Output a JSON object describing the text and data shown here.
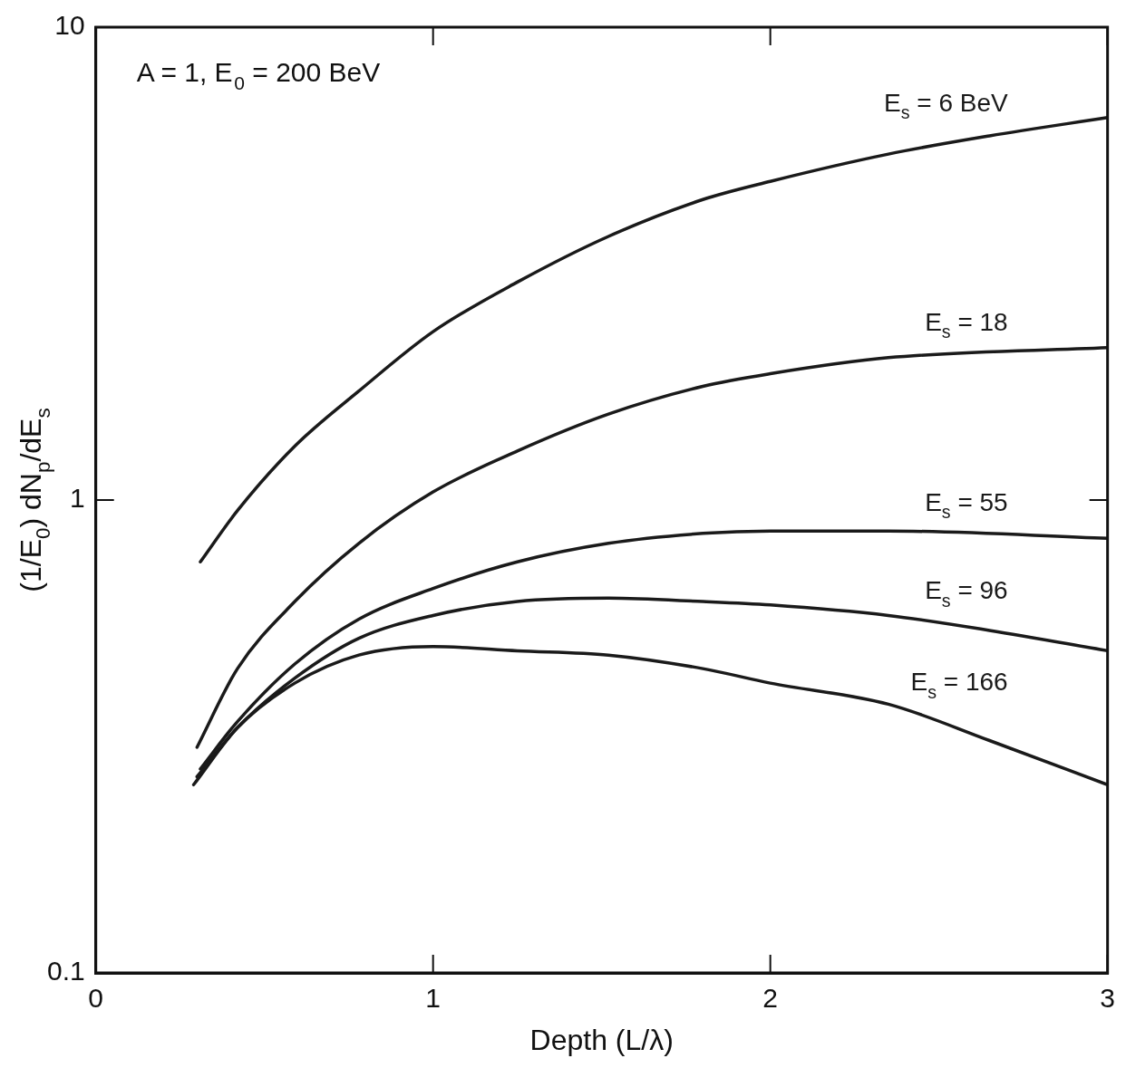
{
  "chart_data": {
    "type": "line",
    "xlabel": "Depth (L/λ)",
    "ylabel": "(1/E$_{0}$) dN$_{p}$/dE$_{s}$",
    "log": "y",
    "grid": false,
    "legend": false,
    "marker": "none",
    "line_style": "solid",
    "xlim": [
      0,
      3
    ],
    "xticks": [
      0,
      1,
      2,
      3
    ],
    "ylim": [
      0.1,
      10
    ],
    "yticks": [
      0.1,
      1,
      10
    ],
    "annotations": [
      "A = 1, E$_{0}$ = 200 BeV"
    ],
    "series": [
      {
        "name": "E$_{s}$ = 6 BeV",
        "color": "#1a1a1a",
        "x": [
          0.31,
          0.42,
          0.59,
          0.78,
          1.0,
          1.25,
          1.52,
          1.8,
          2.0,
          2.35,
          2.65,
          3.0
        ],
        "values": [
          0.74,
          0.95,
          1.3,
          1.7,
          2.27,
          2.89,
          3.61,
          4.32,
          4.72,
          5.39,
          5.89,
          6.44
        ]
      },
      {
        "name": "E$_{s}$ = 18",
        "color": "#1a1a1a",
        "x": [
          0.3,
          0.42,
          0.59,
          0.78,
          1.0,
          1.25,
          1.52,
          1.8,
          2.0,
          2.35,
          3.0
        ],
        "values": [
          0.3,
          0.44,
          0.61,
          0.81,
          1.04,
          1.27,
          1.52,
          1.74,
          1.85,
          2.0,
          2.1
        ]
      },
      {
        "name": "E$_{s}$ = 55",
        "color": "#1a1a1a",
        "x": [
          0.31,
          0.42,
          0.59,
          0.78,
          1.0,
          1.25,
          1.52,
          1.8,
          2.0,
          2.35,
          3.0
        ],
        "values": [
          0.27,
          0.34,
          0.45,
          0.56,
          0.65,
          0.74,
          0.81,
          0.85,
          0.86,
          0.86,
          0.83
        ]
      },
      {
        "name": "E$_{s}$ = 96",
        "color": "#1a1a1a",
        "x": [
          0.3,
          0.42,
          0.59,
          0.78,
          1.0,
          1.25,
          1.52,
          1.8,
          2.0,
          2.35,
          2.65,
          3.0
        ],
        "values": [
          0.26,
          0.33,
          0.42,
          0.51,
          0.57,
          0.61,
          0.62,
          0.61,
          0.6,
          0.57,
          0.53,
          0.48
        ]
      },
      {
        "name": "E$_{s}$ = 166",
        "color": "#1a1a1a",
        "x": [
          0.29,
          0.42,
          0.59,
          0.78,
          1.0,
          1.25,
          1.52,
          1.8,
          2.0,
          2.35,
          2.65,
          3.0
        ],
        "values": [
          0.25,
          0.33,
          0.41,
          0.47,
          0.49,
          0.48,
          0.47,
          0.44,
          0.41,
          0.37,
          0.31,
          0.25
        ]
      }
    ]
  }
}
